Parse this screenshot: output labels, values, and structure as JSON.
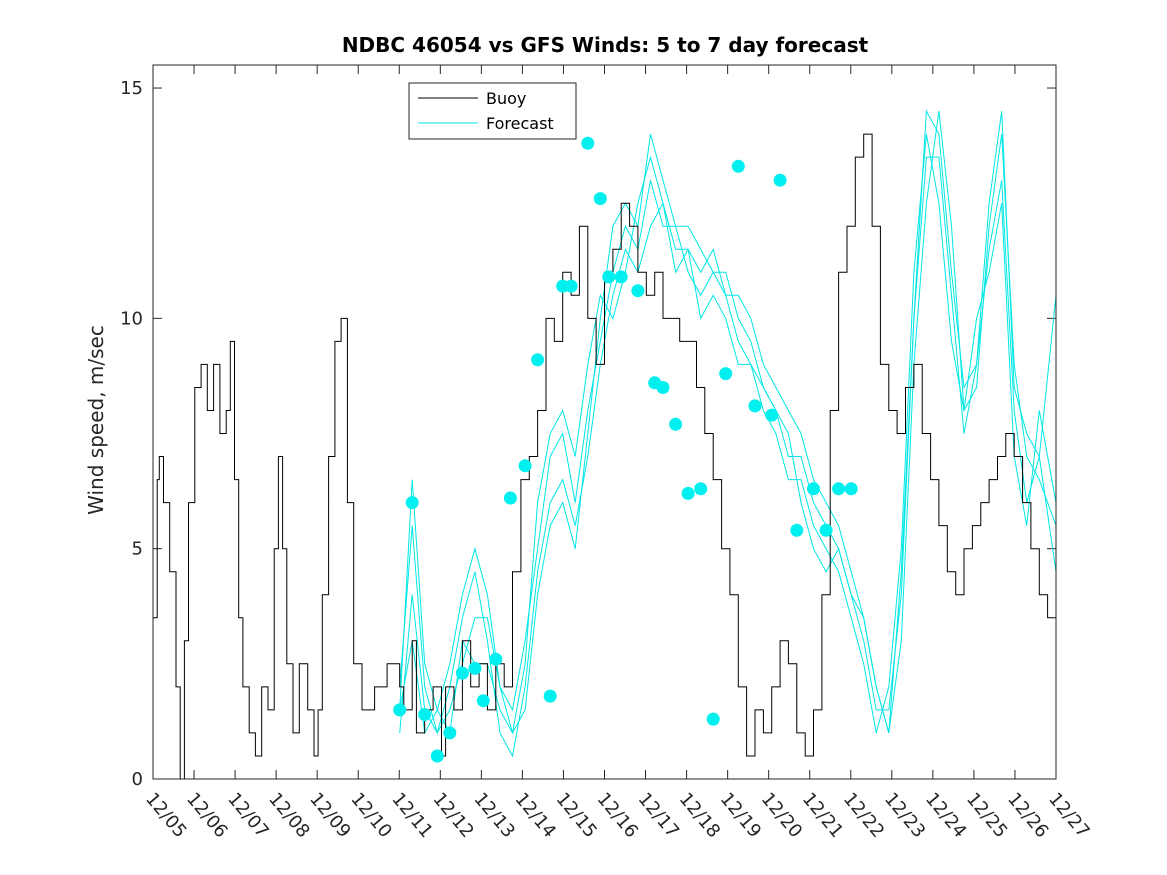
{
  "chart_data": {
    "type": "line",
    "title": "NDBC 46054 vs GFS Winds: 5 to 7 day forecast",
    "xlabel": "",
    "ylabel": "Wind speed, m/sec",
    "ylim": [
      0,
      15.5
    ],
    "xlim": [
      0,
      21.6
    ],
    "yticks": [
      0,
      5,
      10,
      15
    ],
    "x_tick_labels": [
      "12/05",
      "12/06",
      "12/07",
      "12/08",
      "12/09",
      "12/10",
      "12/11",
      "12/12",
      "12/13",
      "12/14",
      "12/15",
      "12/16",
      "12/17",
      "12/18",
      "12/19",
      "12/20",
      "12/21",
      "12/22",
      "12/23",
      "12/24",
      "12/25",
      "12/26",
      "12/27"
    ],
    "legend": {
      "position": "top-center",
      "entries": [
        "Buoy",
        "Forecast"
      ]
    },
    "colors": {
      "buoy": "#000000",
      "forecast": "#00e6e6",
      "marker": "#00f0f0",
      "axis": "#262626"
    },
    "series": [
      {
        "name": "Buoy",
        "x": [
          0.0,
          0.1,
          0.15,
          0.25,
          0.4,
          0.55,
          0.65,
          0.75,
          0.85,
          1.0,
          1.15,
          1.3,
          1.45,
          1.6,
          1.75,
          1.85,
          1.95,
          2.05,
          2.15,
          2.3,
          2.45,
          2.6,
          2.75,
          2.9,
          3.0,
          3.1,
          3.2,
          3.35,
          3.5,
          3.7,
          3.85,
          3.95,
          4.05,
          4.2,
          4.35,
          4.5,
          4.65,
          4.8,
          5.0,
          5.3,
          5.6,
          5.9,
          6.0,
          6.2,
          6.3,
          6.5,
          6.7,
          6.9,
          7.0,
          7.2,
          7.4,
          7.6,
          7.8,
          8.0,
          8.2,
          8.4,
          8.6,
          8.8,
          9.0,
          9.2,
          9.4,
          9.6,
          9.8,
          10.0,
          10.2,
          10.4,
          10.6,
          10.8,
          11.0,
          11.2,
          11.4,
          11.6,
          11.8,
          12.0,
          12.2,
          12.4,
          12.6,
          12.8,
          13.0,
          13.2,
          13.4,
          13.6,
          13.8,
          14.0,
          14.2,
          14.4,
          14.6,
          14.8,
          15.0,
          15.2,
          15.4,
          15.6,
          15.8,
          16.0,
          16.2,
          16.4,
          16.6,
          16.8,
          17.0,
          17.2,
          17.4,
          17.6,
          17.8,
          18.0,
          18.2,
          18.4,
          18.6,
          18.8,
          19.0,
          19.2,
          19.4,
          19.6,
          19.8,
          20.0,
          20.2,
          20.4,
          20.6,
          20.8,
          21.0,
          21.2,
          21.4,
          21.6
        ],
        "y": [
          3.5,
          6.5,
          7.0,
          6.0,
          4.5,
          2.0,
          0.0,
          3.0,
          6.0,
          8.5,
          9.0,
          8.0,
          9.0,
          7.5,
          8.0,
          9.5,
          6.5,
          3.5,
          2.0,
          1.0,
          0.5,
          2.0,
          1.5,
          5.0,
          7.0,
          5.0,
          2.5,
          1.0,
          2.5,
          1.5,
          0.5,
          1.5,
          4.0,
          7.0,
          9.5,
          10.0,
          6.0,
          2.5,
          1.5,
          2.0,
          2.5,
          2.0,
          1.5,
          3.0,
          1.0,
          1.5,
          2.0,
          0.5,
          2.0,
          1.5,
          3.0,
          2.0,
          2.5,
          1.5,
          2.5,
          2.0,
          4.5,
          6.5,
          7.0,
          8.0,
          10.0,
          9.5,
          11.0,
          10.5,
          12.0,
          10.0,
          9.0,
          11.0,
          11.5,
          12.5,
          12.0,
          11.0,
          10.5,
          11.0,
          10.0,
          10.0,
          9.5,
          9.5,
          8.5,
          7.5,
          6.5,
          5.0,
          4.0,
          2.0,
          0.5,
          1.5,
          1.0,
          2.0,
          3.0,
          2.5,
          1.0,
          0.5,
          1.5,
          4.0,
          8.0,
          11.0,
          12.0,
          13.5,
          14.0,
          12.0,
          9.0,
          8.0,
          7.5,
          8.5,
          9.0,
          7.5,
          6.5,
          5.5,
          4.5,
          4.0,
          5.0,
          5.5,
          6.0,
          6.5,
          7.0,
          7.5,
          7.0,
          6.0,
          5.0,
          4.0,
          3.5,
          3.5
        ]
      },
      {
        "name": "Forecast",
        "x": [
          5.9,
          6.2,
          6.5,
          6.8,
          7.1,
          7.4,
          7.7,
          8.0,
          8.3,
          8.6,
          8.9,
          9.2,
          9.5,
          9.8,
          10.1,
          10.4,
          10.7,
          11.0,
          11.3,
          11.6,
          11.9,
          12.2,
          12.5,
          12.8,
          13.1,
          13.4,
          13.7,
          14.0,
          14.3,
          14.6,
          14.9,
          15.2,
          15.5,
          15.8,
          16.1,
          16.4,
          16.7,
          17.0,
          17.3,
          17.6,
          17.9,
          18.2,
          18.5,
          18.8,
          19.1,
          19.4,
          19.7,
          20.0,
          20.3,
          20.6,
          20.9,
          21.2,
          21.6
        ],
        "y": [
          1.5,
          6.5,
          2.5,
          1.5,
          1.0,
          3.0,
          2.5,
          2.5,
          1.5,
          1.0,
          2.5,
          6.0,
          7.5,
          8.0,
          7.0,
          9.0,
          10.5,
          10.0,
          11.0,
          12.5,
          13.5,
          12.5,
          11.0,
          11.5,
          11.0,
          11.5,
          10.5,
          10.5,
          10.0,
          9.0,
          8.5,
          8.0,
          7.5,
          6.5,
          6.0,
          5.5,
          4.5,
          3.5,
          2.0,
          1.0,
          3.0,
          9.0,
          12.5,
          14.5,
          12.0,
          8.0,
          8.5,
          12.0,
          14.0,
          9.0,
          7.0,
          6.5,
          5.5
        ]
      },
      {
        "name": "Forecast",
        "x": [
          5.9,
          6.2,
          6.5,
          6.8,
          7.1,
          7.4,
          7.7,
          8.0,
          8.3,
          8.6,
          8.9,
          9.2,
          9.5,
          9.8,
          10.1,
          10.4,
          10.7,
          11.0,
          11.3,
          11.6,
          11.9,
          12.2,
          12.5,
          12.8,
          13.1,
          13.4,
          13.7,
          14.0,
          14.3,
          14.6,
          14.9,
          15.2,
          15.5,
          15.8,
          16.1,
          16.4,
          16.7,
          17.0,
          17.3,
          17.6,
          17.9,
          18.2,
          18.5,
          18.8,
          19.1,
          19.4,
          19.7,
          20.0,
          20.3,
          20.6,
          20.9,
          21.2,
          21.6
        ],
        "y": [
          2.0,
          5.5,
          2.0,
          1.0,
          1.5,
          2.5,
          3.5,
          3.5,
          2.0,
          1.5,
          3.0,
          5.0,
          7.0,
          7.5,
          6.0,
          8.0,
          9.5,
          11.0,
          12.0,
          11.5,
          13.0,
          12.0,
          12.0,
          11.0,
          10.5,
          11.0,
          11.0,
          10.0,
          9.5,
          8.5,
          8.0,
          7.0,
          7.0,
          6.0,
          5.5,
          5.0,
          4.0,
          3.0,
          1.5,
          1.5,
          4.0,
          10.0,
          13.5,
          13.5,
          10.5,
          7.5,
          9.0,
          11.5,
          13.0,
          8.0,
          6.0,
          7.0,
          4.5
        ]
      },
      {
        "name": "Forecast",
        "x": [
          5.9,
          6.2,
          6.5,
          6.8,
          7.1,
          7.4,
          7.7,
          8.0,
          8.3,
          8.6,
          8.9,
          9.2,
          9.5,
          9.8,
          10.1,
          10.4,
          10.7,
          11.0,
          11.3,
          11.6,
          11.9,
          12.2,
          12.5,
          12.8,
          13.1,
          13.4,
          13.7,
          14.0,
          14.3,
          14.6,
          14.9,
          15.2,
          15.5,
          15.8,
          16.1,
          16.4,
          16.7,
          17.0,
          17.3,
          17.6,
          17.9,
          18.2,
          18.5,
          18.8,
          19.1,
          19.4,
          19.7,
          20.0,
          20.3,
          20.6,
          20.9,
          21.2,
          21.6
        ],
        "y": [
          1.0,
          4.0,
          1.5,
          1.0,
          2.0,
          3.5,
          4.5,
          3.0,
          1.0,
          0.5,
          2.0,
          4.5,
          6.0,
          6.5,
          5.5,
          7.0,
          9.0,
          10.5,
          11.5,
          11.0,
          12.0,
          12.5,
          11.5,
          11.5,
          10.0,
          10.5,
          10.0,
          9.0,
          9.0,
          8.0,
          7.5,
          6.5,
          6.5,
          5.5,
          5.0,
          4.5,
          3.5,
          2.5,
          1.0,
          2.0,
          5.0,
          11.0,
          14.0,
          12.5,
          9.5,
          8.0,
          10.0,
          11.0,
          12.5,
          7.0,
          5.5,
          8.0,
          6.0
        ]
      },
      {
        "name": "Forecast",
        "x": [
          5.9,
          6.2,
          6.5,
          6.8,
          7.1,
          7.4,
          7.7,
          8.0,
          8.3,
          8.6,
          8.9,
          9.2,
          9.5,
          9.8,
          10.1,
          10.4,
          10.7,
          11.0,
          11.3,
          11.6,
          11.9,
          12.2,
          12.5,
          12.8,
          13.1,
          13.4,
          13.7,
          14.0,
          14.3,
          14.6,
          14.9,
          15.2,
          15.5,
          15.8,
          16.1,
          16.4,
          16.7,
          17.0,
          17.3,
          17.6,
          17.9,
          18.2,
          18.5,
          18.8,
          19.1,
          19.4,
          19.7,
          20.0,
          20.3,
          20.6,
          20.9,
          21.2,
          21.6
        ],
        "y": [
          1.5,
          3.0,
          1.0,
          1.5,
          2.5,
          4.0,
          5.0,
          4.0,
          2.0,
          1.0,
          1.5,
          4.0,
          5.5,
          6.0,
          5.0,
          7.5,
          10.0,
          12.0,
          12.5,
          12.0,
          14.0,
          13.0,
          12.0,
          12.0,
          11.5,
          11.0,
          10.5,
          9.5,
          9.0,
          8.5,
          8.0,
          7.5,
          6.0,
          5.0,
          4.5,
          5.0,
          4.0,
          3.5,
          2.0,
          1.0,
          4.5,
          10.0,
          14.5,
          14.0,
          11.0,
          8.5,
          9.0,
          12.5,
          14.5,
          8.5,
          7.5,
          7.0,
          10.5
        ]
      }
    ],
    "markers": {
      "name": "Forecast",
      "x": [
        5.9,
        6.2,
        6.5,
        6.8,
        7.1,
        7.4,
        7.7,
        7.9,
        8.2,
        8.55,
        8.9,
        9.2,
        9.5,
        9.8,
        10.0,
        10.4,
        10.7,
        10.9,
        11.2,
        11.6,
        12.0,
        12.2,
        12.5,
        12.8,
        13.1,
        13.4,
        13.7,
        14.0,
        14.4,
        14.8,
        15.0,
        15.4,
        15.8,
        16.1,
        16.4,
        16.7,
        17.0,
        17.5,
        17.8,
        18.0,
        18.4,
        18.8,
        19.2,
        19.5,
        19.9,
        20.3,
        20.6
      ],
      "y": [
        1.5,
        6.0,
        1.4,
        0.5,
        1.0,
        2.3,
        2.4,
        1.7,
        2.6,
        6.1,
        6.8,
        9.1,
        1.8,
        10.7,
        10.7,
        13.8,
        12.6,
        10.9,
        10.9,
        10.6,
        8.6,
        8.5,
        7.7,
        6.2,
        6.3,
        1.3,
        8.8,
        13.3,
        8.1,
        7.9,
        13.0,
        5.4,
        6.3,
        5.4,
        6.3,
        6.3,
        6.3,
        6.3,
        6.3,
        6.3,
        6.3,
        6.3,
        6.3,
        6.3,
        6.3,
        6.3,
        6.3
      ]
    }
  }
}
